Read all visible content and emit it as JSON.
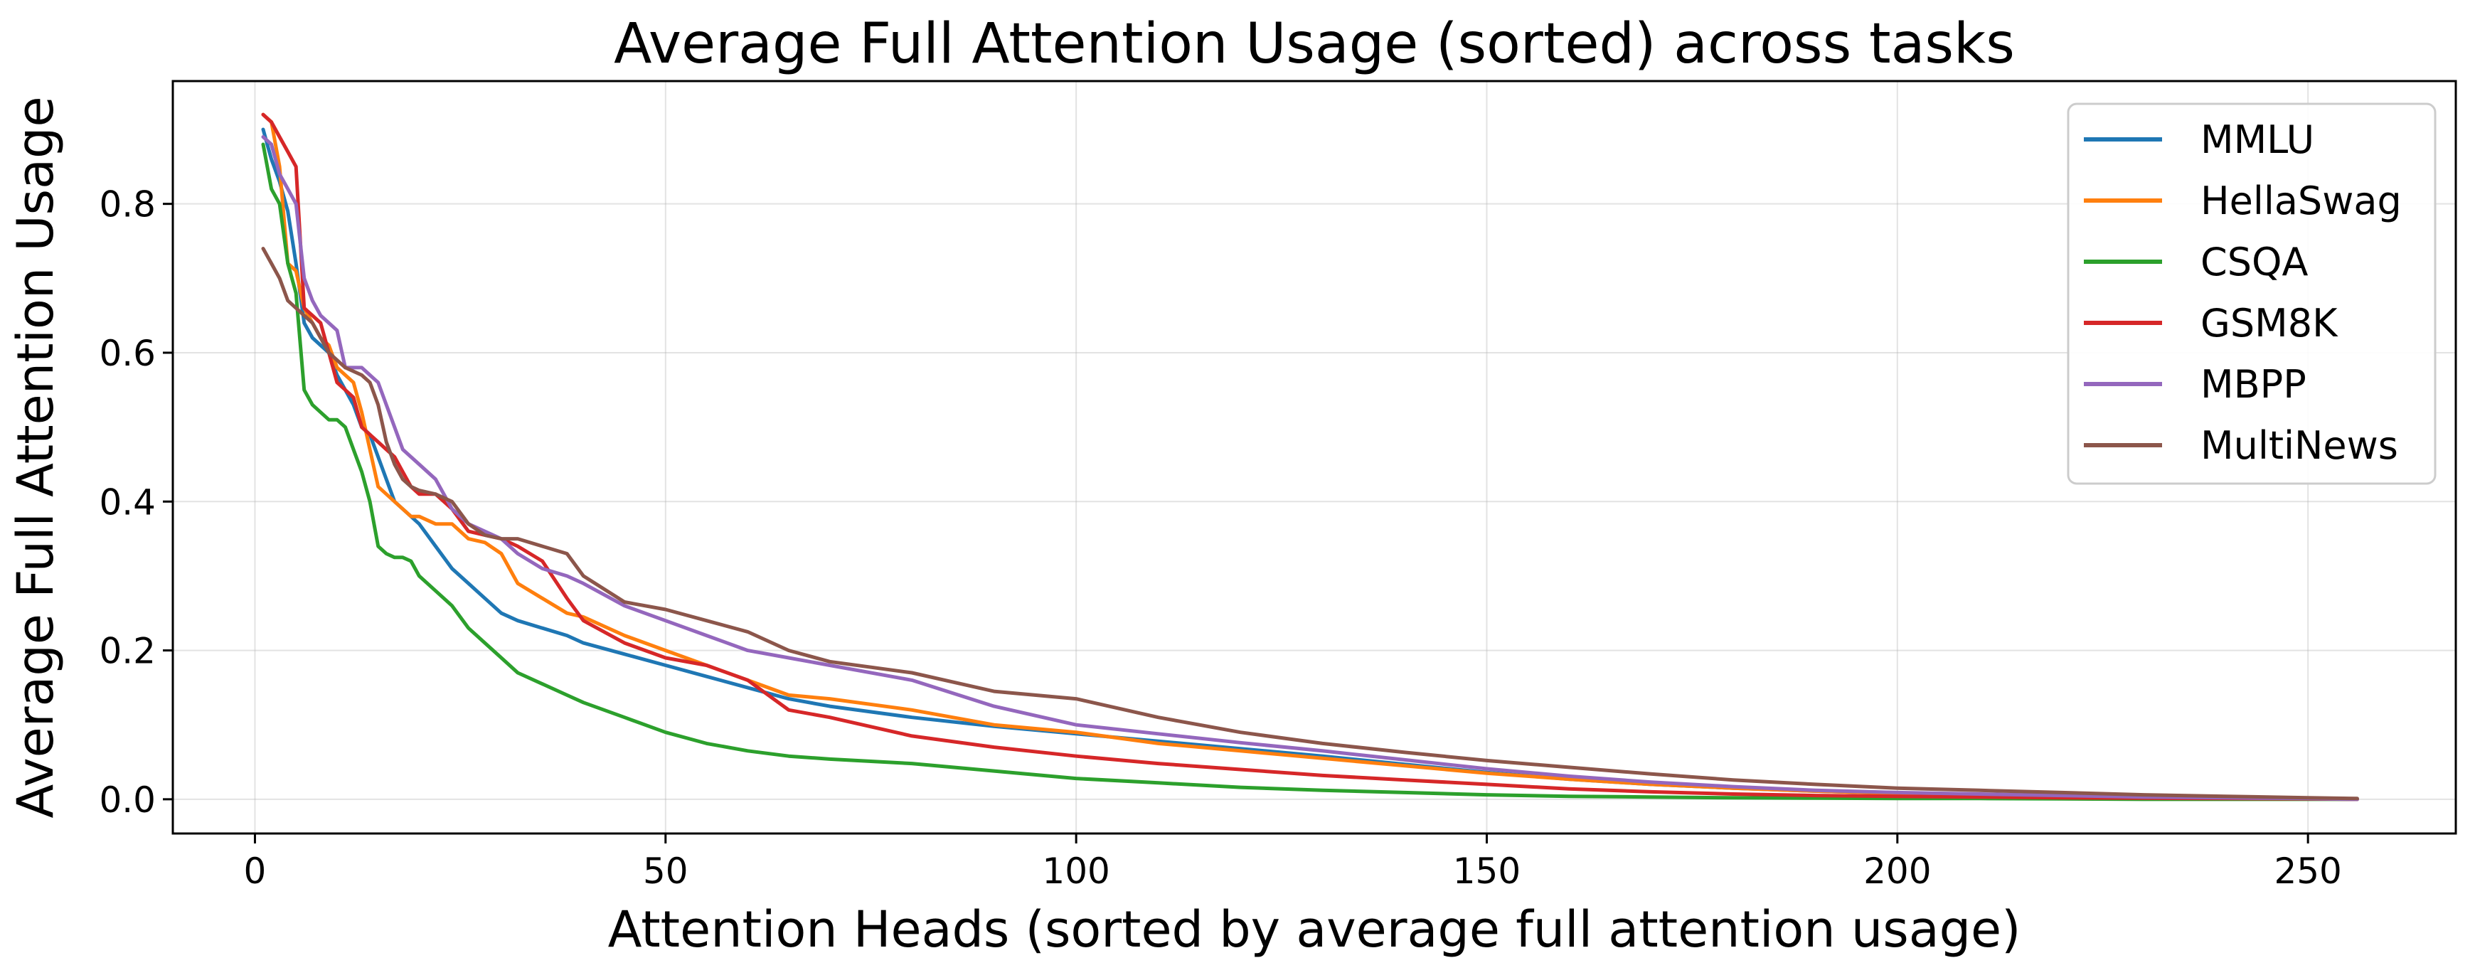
{
  "chart_data": {
    "type": "line",
    "title": "Average Full Attention Usage (sorted) across tasks",
    "xlabel": "Attention Heads (sorted by average full attention usage)",
    "ylabel": "Average Full Attention Usage",
    "xlim": [
      -10,
      268
    ],
    "ylim": [
      -0.046,
      0.965
    ],
    "xticks": [
      0,
      50,
      100,
      150,
      200,
      250
    ],
    "yticks": [
      0.0,
      0.2,
      0.4,
      0.6,
      0.8
    ],
    "xtick_labels": [
      "0",
      "50",
      "100",
      "150",
      "200",
      "250"
    ],
    "ytick_labels": [
      "0.0",
      "0.2",
      "0.4",
      "0.6",
      "0.8"
    ],
    "grid": true,
    "legend_position": "top-right",
    "series": [
      {
        "name": "MMLU",
        "color": "#1f77b4",
        "x": [
          1,
          2,
          3,
          4,
          5,
          6,
          7,
          8,
          9,
          10,
          11,
          12,
          13,
          14,
          15,
          16,
          17,
          18,
          19,
          20,
          22,
          24,
          26,
          28,
          30,
          32,
          35,
          38,
          40,
          45,
          50,
          55,
          60,
          65,
          70,
          80,
          90,
          100,
          110,
          120,
          130,
          140,
          150,
          160,
          170,
          180,
          190,
          200,
          210,
          220,
          230,
          240,
          250,
          256
        ],
        "y": [
          0.9,
          0.86,
          0.83,
          0.79,
          0.72,
          0.64,
          0.62,
          0.61,
          0.6,
          0.57,
          0.55,
          0.53,
          0.5,
          0.49,
          0.46,
          0.43,
          0.4,
          0.39,
          0.38,
          0.37,
          0.34,
          0.31,
          0.29,
          0.27,
          0.25,
          0.24,
          0.23,
          0.22,
          0.21,
          0.195,
          0.18,
          0.165,
          0.15,
          0.135,
          0.125,
          0.11,
          0.098,
          0.088,
          0.078,
          0.068,
          0.058,
          0.047,
          0.036,
          0.027,
          0.02,
          0.015,
          0.011,
          0.008,
          0.006,
          0.004,
          0.003,
          0.002,
          0.001,
          0.0
        ]
      },
      {
        "name": "HellaSwag",
        "color": "#ff7f0e",
        "x": [
          1,
          2,
          3,
          4,
          5,
          6,
          7,
          8,
          9,
          10,
          11,
          12,
          13,
          14,
          15,
          16,
          17,
          18,
          19,
          20,
          22,
          24,
          26,
          28,
          30,
          32,
          35,
          38,
          40,
          45,
          50,
          55,
          60,
          65,
          70,
          80,
          90,
          100,
          110,
          120,
          130,
          140,
          150,
          160,
          170,
          180,
          190,
          200,
          210,
          220,
          230,
          240,
          250,
          256
        ],
        "y": [
          0.92,
          0.91,
          0.85,
          0.72,
          0.71,
          0.66,
          0.64,
          0.62,
          0.61,
          0.58,
          0.57,
          0.56,
          0.52,
          0.47,
          0.42,
          0.41,
          0.4,
          0.39,
          0.38,
          0.38,
          0.37,
          0.37,
          0.35,
          0.345,
          0.33,
          0.29,
          0.27,
          0.25,
          0.245,
          0.22,
          0.2,
          0.18,
          0.16,
          0.14,
          0.135,
          0.12,
          0.1,
          0.09,
          0.075,
          0.065,
          0.055,
          0.045,
          0.035,
          0.027,
          0.02,
          0.015,
          0.011,
          0.008,
          0.006,
          0.004,
          0.003,
          0.002,
          0.001,
          0.0
        ]
      },
      {
        "name": "CSQA",
        "color": "#2ca02c",
        "x": [
          1,
          2,
          3,
          4,
          5,
          6,
          7,
          8,
          9,
          10,
          11,
          12,
          13,
          14,
          15,
          16,
          17,
          18,
          19,
          20,
          22,
          24,
          26,
          28,
          30,
          32,
          35,
          38,
          40,
          45,
          50,
          55,
          60,
          65,
          70,
          80,
          90,
          100,
          110,
          120,
          130,
          140,
          150,
          160,
          170,
          180,
          190,
          200,
          210,
          220,
          230,
          240,
          250,
          256
        ],
        "y": [
          0.88,
          0.82,
          0.8,
          0.72,
          0.68,
          0.55,
          0.53,
          0.52,
          0.51,
          0.51,
          0.5,
          0.47,
          0.44,
          0.4,
          0.34,
          0.33,
          0.325,
          0.325,
          0.32,
          0.3,
          0.28,
          0.26,
          0.23,
          0.21,
          0.19,
          0.17,
          0.155,
          0.14,
          0.13,
          0.11,
          0.09,
          0.075,
          0.065,
          0.058,
          0.054,
          0.048,
          0.038,
          0.028,
          0.022,
          0.016,
          0.012,
          0.009,
          0.006,
          0.004,
          0.003,
          0.002,
          0.0015,
          0.001,
          0.001,
          0.0005,
          0.0,
          0.0,
          0.0,
          0.0
        ]
      },
      {
        "name": "GSM8K",
        "color": "#d62728",
        "x": [
          1,
          2,
          3,
          4,
          5,
          6,
          7,
          8,
          9,
          10,
          11,
          12,
          13,
          14,
          15,
          16,
          17,
          18,
          19,
          20,
          22,
          24,
          26,
          28,
          30,
          32,
          35,
          38,
          40,
          45,
          50,
          55,
          60,
          65,
          70,
          80,
          90,
          100,
          110,
          120,
          130,
          140,
          150,
          160,
          170,
          180,
          190,
          200,
          210,
          220,
          230,
          240,
          250,
          256
        ],
        "y": [
          0.92,
          0.91,
          0.89,
          0.87,
          0.85,
          0.66,
          0.65,
          0.64,
          0.6,
          0.56,
          0.55,
          0.54,
          0.5,
          0.49,
          0.48,
          0.47,
          0.46,
          0.44,
          0.42,
          0.41,
          0.41,
          0.39,
          0.36,
          0.355,
          0.35,
          0.34,
          0.32,
          0.27,
          0.24,
          0.21,
          0.19,
          0.18,
          0.16,
          0.12,
          0.11,
          0.085,
          0.07,
          0.058,
          0.048,
          0.04,
          0.032,
          0.026,
          0.02,
          0.014,
          0.01,
          0.007,
          0.005,
          0.004,
          0.003,
          0.002,
          0.0015,
          0.001,
          0.0005,
          0.0
        ]
      },
      {
        "name": "MBPP",
        "color": "#9467bd",
        "x": [
          1,
          2,
          3,
          4,
          5,
          6,
          7,
          8,
          9,
          10,
          11,
          12,
          13,
          14,
          15,
          16,
          17,
          18,
          19,
          20,
          22,
          24,
          26,
          28,
          30,
          32,
          35,
          38,
          40,
          45,
          50,
          55,
          60,
          65,
          70,
          80,
          90,
          100,
          110,
          120,
          130,
          140,
          150,
          160,
          170,
          180,
          190,
          200,
          210,
          220,
          230,
          240,
          250,
          256
        ],
        "y": [
          0.89,
          0.88,
          0.84,
          0.82,
          0.8,
          0.7,
          0.67,
          0.65,
          0.64,
          0.63,
          0.58,
          0.58,
          0.58,
          0.57,
          0.56,
          0.53,
          0.5,
          0.47,
          0.46,
          0.45,
          0.43,
          0.39,
          0.37,
          0.36,
          0.35,
          0.33,
          0.31,
          0.3,
          0.29,
          0.26,
          0.24,
          0.22,
          0.2,
          0.19,
          0.18,
          0.16,
          0.125,
          0.1,
          0.088,
          0.076,
          0.065,
          0.053,
          0.041,
          0.031,
          0.023,
          0.017,
          0.012,
          0.009,
          0.007,
          0.005,
          0.003,
          0.002,
          0.001,
          0.0
        ]
      },
      {
        "name": "MultiNews",
        "color": "#8c564b",
        "x": [
          1,
          2,
          3,
          4,
          5,
          6,
          7,
          8,
          9,
          10,
          11,
          12,
          13,
          14,
          15,
          16,
          17,
          18,
          19,
          20,
          22,
          24,
          26,
          28,
          30,
          32,
          35,
          38,
          40,
          45,
          50,
          55,
          60,
          65,
          70,
          80,
          90,
          100,
          110,
          120,
          130,
          140,
          150,
          160,
          170,
          180,
          190,
          200,
          210,
          220,
          230,
          240,
          250,
          256
        ],
        "y": [
          0.74,
          0.72,
          0.7,
          0.67,
          0.66,
          0.65,
          0.64,
          0.62,
          0.6,
          0.59,
          0.58,
          0.575,
          0.57,
          0.56,
          0.53,
          0.48,
          0.45,
          0.43,
          0.42,
          0.415,
          0.41,
          0.4,
          0.37,
          0.355,
          0.35,
          0.35,
          0.34,
          0.33,
          0.3,
          0.265,
          0.255,
          0.24,
          0.225,
          0.2,
          0.185,
          0.17,
          0.145,
          0.135,
          0.11,
          0.09,
          0.075,
          0.063,
          0.052,
          0.043,
          0.034,
          0.026,
          0.02,
          0.015,
          0.012,
          0.009,
          0.006,
          0.004,
          0.002,
          0.001
        ]
      }
    ]
  }
}
